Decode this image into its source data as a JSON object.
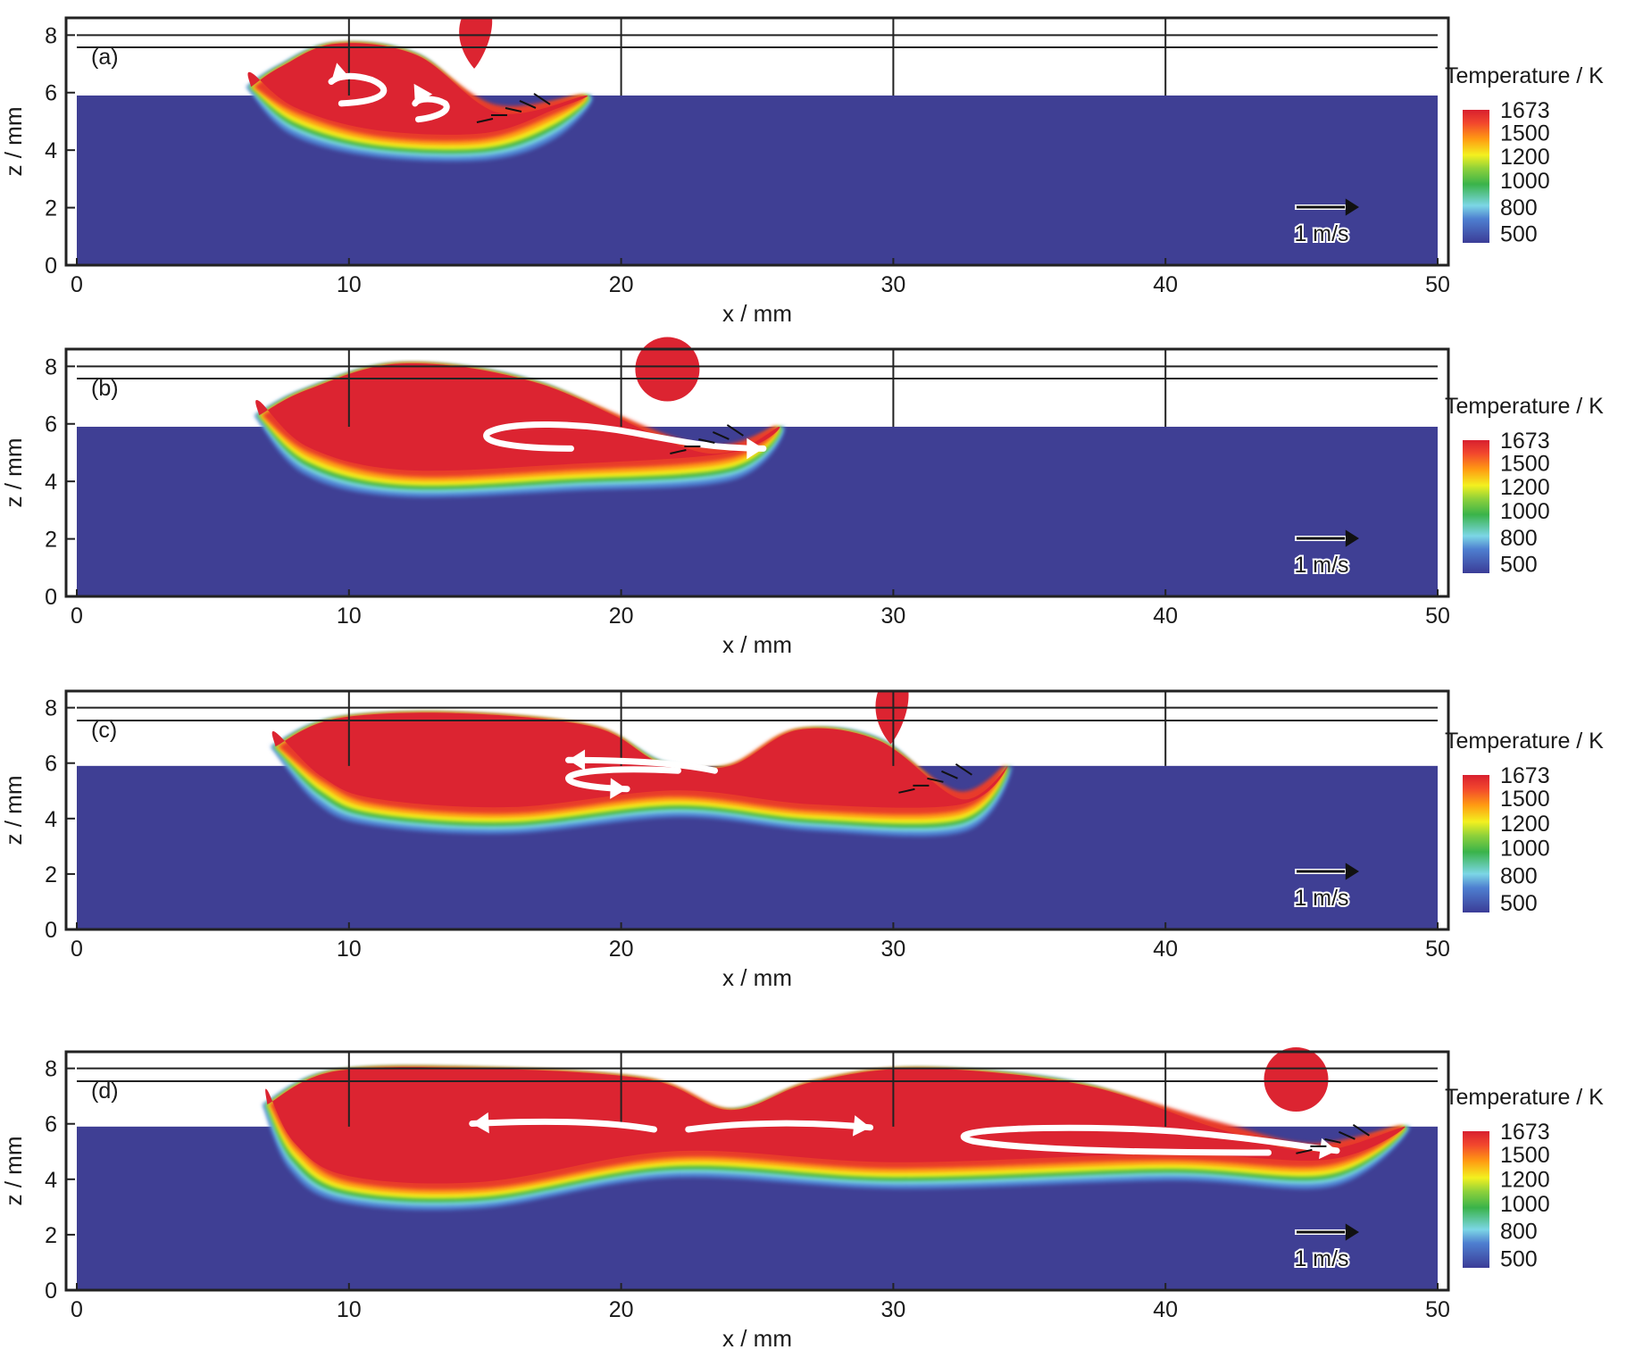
{
  "colors": {
    "background": "#ffffff",
    "substrate": "#3f3f94",
    "frame": "#222222",
    "arrow_white": "#ffffff",
    "colorbar_stops": [
      "#3b3c97",
      "#4e7fd0",
      "#7cd6e6",
      "#3ab34a",
      "#8fd13a",
      "#f3f01f",
      "#ff9b12",
      "#f2472d",
      "#d8202f"
    ]
  },
  "chart_data": [
    {
      "type": "heatmap",
      "panel_label": "(a)",
      "xlabel": "x / mm",
      "ylabel": "z / mm",
      "xlim": [
        0,
        50
      ],
      "ylim": [
        0,
        8.6
      ],
      "x_ticks": [
        0,
        10,
        20,
        30,
        40,
        50
      ],
      "y_ticks": [
        0,
        2,
        4,
        6,
        8
      ],
      "substrate_surface_z": 5.9,
      "colorbar": {
        "title": "Temperature / K",
        "ticks": [
          1673,
          1500,
          1200,
          1000,
          800,
          500
        ]
      },
      "velocity_reference": "1 m/s",
      "droplet": {
        "x": 14.6,
        "z": 8.2,
        "shape": "falling"
      },
      "melt_pool": {
        "top": [
          [
            6.4,
            6.2
          ],
          [
            7.5,
            6.9
          ],
          [
            9.5,
            7.7
          ],
          [
            12.5,
            7.3
          ],
          [
            15.5,
            5.3
          ],
          [
            18.7,
            5.9
          ]
        ],
        "bottom": [
          [
            18.7,
            5.9
          ],
          [
            17.5,
            4.9
          ],
          [
            15.0,
            4.1
          ],
          [
            11.0,
            4.2
          ],
          [
            8.0,
            5.0
          ],
          [
            6.4,
            6.2
          ]
        ]
      },
      "flow_arrows": 2
    },
    {
      "type": "heatmap",
      "panel_label": "(b)",
      "xlabel": "x / mm",
      "ylabel": "z / mm",
      "xlim": [
        0,
        50
      ],
      "ylim": [
        0,
        8.6
      ],
      "x_ticks": [
        0,
        10,
        20,
        30,
        40,
        50
      ],
      "y_ticks": [
        0,
        2,
        4,
        6,
        8
      ],
      "substrate_surface_z": 5.9,
      "colorbar": {
        "title": "Temperature / K",
        "ticks": [
          1673,
          1500,
          1200,
          1000,
          800,
          500
        ]
      },
      "velocity_reference": "1 m/s",
      "droplet": {
        "x": 21.7,
        "z": 7.9,
        "shape": "round"
      },
      "melt_pool": {
        "top": [
          [
            6.7,
            6.3
          ],
          [
            8.5,
            7.2
          ],
          [
            12.0,
            8.1
          ],
          [
            17.0,
            7.4
          ],
          [
            23.0,
            5.0
          ],
          [
            25.8,
            5.9
          ]
        ],
        "bottom": [
          [
            25.8,
            5.9
          ],
          [
            24.0,
            4.5
          ],
          [
            18.0,
            4.1
          ],
          [
            12.0,
            3.9
          ],
          [
            8.5,
            4.7
          ],
          [
            6.7,
            6.3
          ]
        ]
      },
      "flow_arrows": 1
    },
    {
      "type": "heatmap",
      "panel_label": "(c)",
      "xlabel": "x / mm",
      "ylabel": "z / mm",
      "xlim": [
        0,
        50
      ],
      "ylim": [
        0,
        8.6
      ],
      "x_ticks": [
        0,
        10,
        20,
        30,
        40,
        50
      ],
      "y_ticks": [
        0,
        2,
        4,
        6,
        8
      ],
      "substrate_surface_z": 5.9,
      "colorbar": {
        "title": "Temperature / K",
        "ticks": [
          1673,
          1500,
          1200,
          1000,
          800,
          500
        ]
      },
      "velocity_reference": "1 m/s",
      "droplet": {
        "x": 29.9,
        "z": 8.1,
        "shape": "falling"
      },
      "melt_pool": {
        "top": [
          [
            7.3,
            6.6
          ],
          [
            9.5,
            7.6
          ],
          [
            14.0,
            7.8
          ],
          [
            19.0,
            7.3
          ],
          [
            21.5,
            6.0
          ],
          [
            24.0,
            5.9
          ],
          [
            26.5,
            7.2
          ],
          [
            29.5,
            6.8
          ],
          [
            32.5,
            4.7
          ],
          [
            34.2,
            5.9
          ]
        ],
        "bottom": [
          [
            34.2,
            5.9
          ],
          [
            32.5,
            4.0
          ],
          [
            27.0,
            4.0
          ],
          [
            22.0,
            4.5
          ],
          [
            16.0,
            3.9
          ],
          [
            11.0,
            4.2
          ],
          [
            9.0,
            5.0
          ],
          [
            7.3,
            6.6
          ]
        ]
      },
      "flow_arrows": 2
    },
    {
      "type": "heatmap",
      "panel_label": "(d)",
      "xlabel": "x / mm",
      "ylabel": "z / mm",
      "xlim": [
        0,
        50
      ],
      "ylim": [
        0,
        8.6
      ],
      "x_ticks": [
        0,
        10,
        20,
        30,
        40,
        50
      ],
      "y_ticks": [
        0,
        2,
        4,
        6,
        8
      ],
      "substrate_surface_z": 5.9,
      "colorbar": {
        "title": "Temperature / K",
        "ticks": [
          1673,
          1500,
          1200,
          1000,
          800,
          500
        ]
      },
      "velocity_reference": "1 m/s",
      "droplet": {
        "x": 44.8,
        "z": 7.6,
        "shape": "round"
      },
      "melt_pool": {
        "top": [
          [
            7.0,
            6.7
          ],
          [
            9.5,
            7.9
          ],
          [
            15.0,
            8.0
          ],
          [
            21.0,
            7.6
          ],
          [
            24.0,
            6.5
          ],
          [
            27.0,
            7.5
          ],
          [
            31.0,
            8.0
          ],
          [
            37.0,
            7.4
          ],
          [
            42.0,
            5.8
          ],
          [
            45.5,
            5.0
          ],
          [
            48.8,
            5.9
          ]
        ],
        "bottom": [
          [
            48.8,
            5.9
          ],
          [
            46.0,
            4.2
          ],
          [
            40.0,
            4.4
          ],
          [
            30.0,
            4.1
          ],
          [
            22.0,
            4.5
          ],
          [
            15.0,
            3.4
          ],
          [
            10.0,
            3.6
          ],
          [
            8.0,
            4.8
          ],
          [
            7.0,
            6.7
          ]
        ]
      },
      "flow_arrows": 3
    }
  ]
}
